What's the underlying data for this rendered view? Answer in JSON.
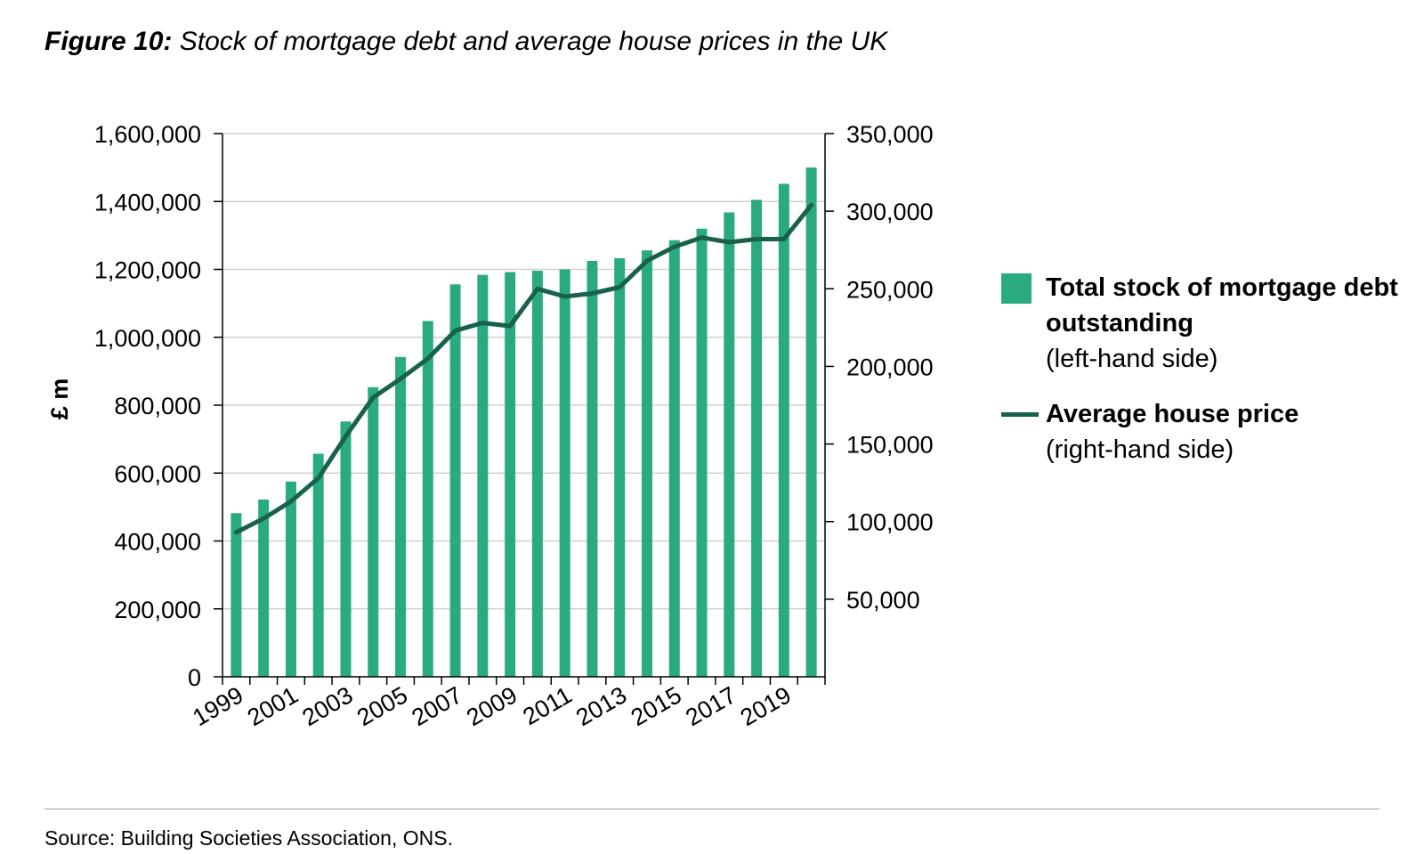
{
  "title": {
    "prefix": "Figure 10:",
    "text": "Stock of mortgage debt and average house prices in the UK"
  },
  "source": "Source: Building Societies Association, ONS.",
  "colors": {
    "bar": "#2aab7f",
    "line": "#17614d",
    "grid": "#d0d0d0",
    "axis": "#000000"
  },
  "chart_data": {
    "type": "bar",
    "title": "Stock of mortgage debt and average house prices in the UK",
    "ylabel": "£ m",
    "ylim": [
      0,
      1600000
    ],
    "y2lim": [
      0,
      350000
    ],
    "yticks": [
      "0",
      "200,000",
      "400,000",
      "600,000",
      "800,000",
      "1,000,000",
      "1,200,000",
      "1,400,000",
      "1,600,000"
    ],
    "y2ticks": [
      "50,000",
      "100,000",
      "150,000",
      "200,000",
      "250,000",
      "300,000",
      "350,000"
    ],
    "y2tick_values": [
      50000,
      100000,
      150000,
      200000,
      250000,
      300000,
      350000
    ],
    "grid": true,
    "legend_position": "right",
    "categories": [
      "1999",
      "2000",
      "2001",
      "2002",
      "2003",
      "2004",
      "2005",
      "2006",
      "2007",
      "2008",
      "2009",
      "2010",
      "2011",
      "2012",
      "2013",
      "2014",
      "2015",
      "2016",
      "2017",
      "2018",
      "2019",
      "2020"
    ],
    "xtick_labels": [
      "1999",
      "2001",
      "2003",
      "2005",
      "2007",
      "2009",
      "2011",
      "2013",
      "2015",
      "2017",
      "2019"
    ],
    "series": [
      {
        "name": "Total stock of mortgage debt outstanding",
        "side": "(left-hand side)",
        "type": "bar",
        "axis": "left",
        "values": [
          482000,
          522000,
          575000,
          657000,
          752000,
          853000,
          942000,
          1048000,
          1156000,
          1184000,
          1192000,
          1196000,
          1200000,
          1225000,
          1233000,
          1256000,
          1286000,
          1320000,
          1368000,
          1405000,
          1452000,
          1500000
        ]
      },
      {
        "name": "Average house price",
        "side": "(right-hand side)",
        "type": "line",
        "axis": "right",
        "values": [
          93000,
          102000,
          113000,
          128000,
          155000,
          180000,
          192000,
          205000,
          223000,
          228000,
          226000,
          250000,
          245000,
          247000,
          251000,
          268000,
          277000,
          283000,
          280000,
          282000,
          282000,
          304000
        ]
      }
    ]
  }
}
